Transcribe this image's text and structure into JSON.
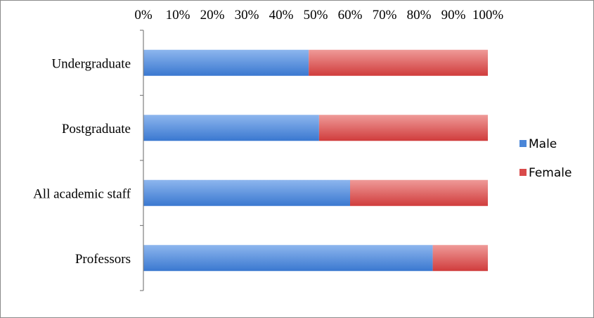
{
  "chart_data": {
    "type": "bar",
    "orientation": "horizontal",
    "stacked": "percent",
    "categories": [
      "Undergraduate",
      "Postgraduate",
      "All academic staff",
      "Professors"
    ],
    "series": [
      {
        "name": "Male",
        "values": [
          48,
          51,
          60,
          84
        ],
        "color": "#4a86d8"
      },
      {
        "name": "Female",
        "values": [
          52,
          49,
          40,
          16
        ],
        "color": "#d94a4a"
      }
    ],
    "x_ticks": [
      "0%",
      "10%",
      "20%",
      "30%",
      "40%",
      "50%",
      "60%",
      "70%",
      "80%",
      "90%",
      "100%"
    ],
    "xlim": [
      0,
      100
    ],
    "x_axis_position": "top",
    "legend_position": "right",
    "grid": false
  }
}
